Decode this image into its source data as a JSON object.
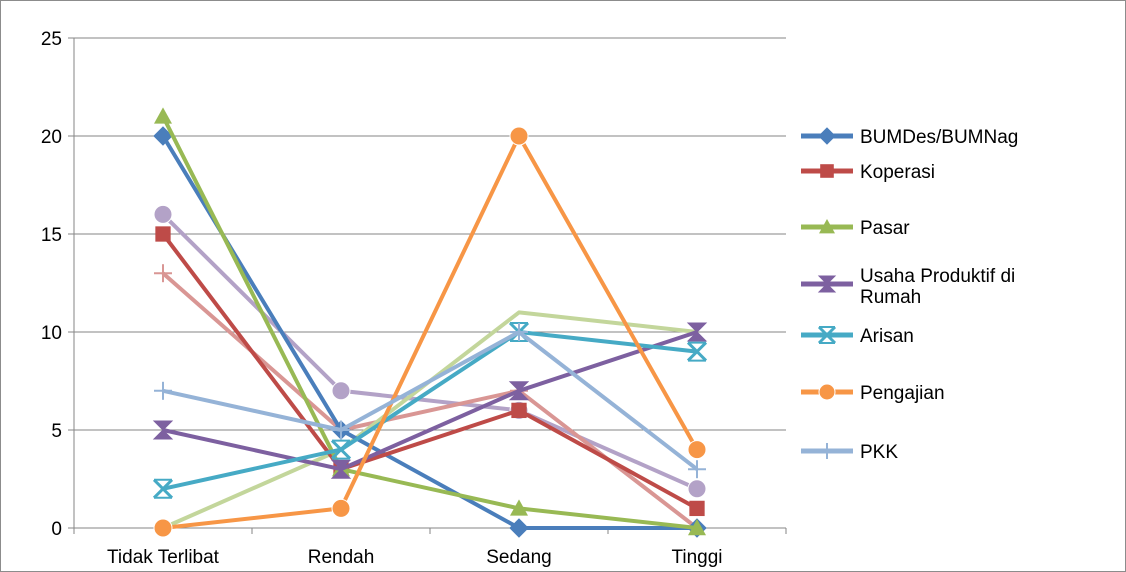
{
  "chart_data": {
    "type": "line",
    "title": "",
    "xlabel": "",
    "ylabel": "",
    "categories": [
      "Tidak Terlibat",
      "Rendah",
      "Sedang",
      "Tinggi"
    ],
    "ylim": [
      0,
      25
    ],
    "yticks": [
      0,
      5,
      10,
      15,
      20,
      25
    ],
    "grid": true,
    "legend_position": "right",
    "series": [
      {
        "name": "BUMDes/BUMNag",
        "values": [
          20,
          5,
          0,
          0
        ],
        "color": "#4a7ebb",
        "marker": "diamond"
      },
      {
        "name": "Koperasi",
        "values": [
          15,
          3,
          6,
          1
        ],
        "color": "#be4b48",
        "marker": "square"
      },
      {
        "name": "Pasar",
        "values": [
          21,
          3,
          1,
          0
        ],
        "color": "#98b954",
        "marker": "triangle"
      },
      {
        "name": "Usaha Produktif di Rumah",
        "values": [
          5,
          3,
          7,
          10
        ],
        "color": "#7d60a0",
        "marker": "hourglass"
      },
      {
        "name": "Arisan",
        "values": [
          2,
          4,
          10,
          9
        ],
        "color": "#46aac5",
        "marker": "star"
      },
      {
        "name": "Pengajian",
        "values": [
          0,
          1,
          20,
          4
        ],
        "color": "#f79646",
        "marker": "circle"
      },
      {
        "name": "PKK",
        "values": [
          7,
          5,
          10,
          3
        ],
        "color": "#95b3d7",
        "marker": "plus"
      },
      {
        "name": "",
        "values": [
          16,
          7,
          6,
          2
        ],
        "color": "#b3a2c7",
        "marker": "circle"
      },
      {
        "name": "",
        "values": [
          13,
          5,
          7,
          0
        ],
        "color": "#d99694",
        "marker": "plus"
      },
      {
        "name": "",
        "values": [
          0,
          4,
          11,
          10
        ],
        "color": "#c3d69b",
        "marker": "none"
      }
    ]
  }
}
